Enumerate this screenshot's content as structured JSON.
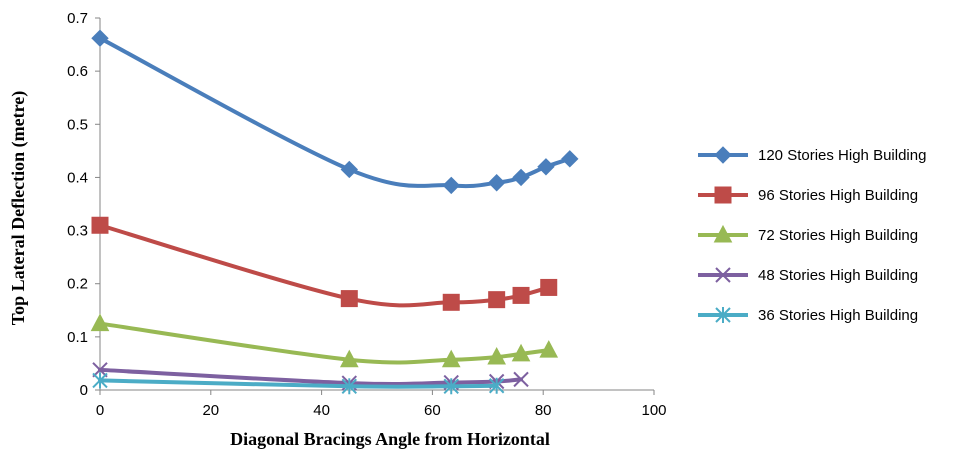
{
  "chart_data": {
    "type": "line",
    "title": "",
    "xlabel": "Diagonal Bracings Angle from Horizontal",
    "ylabel": "Top Lateral Deflection (metre)",
    "xlim": [
      0,
      100
    ],
    "ylim": [
      0,
      0.7
    ],
    "xticks": [
      "0",
      "20",
      "40",
      "60",
      "80",
      "100"
    ],
    "yticks": [
      "0",
      "0.1",
      "0.2",
      "0.3",
      "0.4",
      "0.5",
      "0.6",
      "0.7"
    ],
    "grid": false,
    "legend_position": "right",
    "series": [
      {
        "name": "120 Stories High Building",
        "color": "#4a7ebb",
        "marker": "diamond",
        "x": [
          0,
          45,
          63.4,
          71.6,
          76,
          80.5,
          84.8
        ],
        "y": [
          0.662,
          0.415,
          0.385,
          0.39,
          0.4,
          0.42,
          0.435
        ]
      },
      {
        "name": "96 Stories High Building",
        "color": "#be4b48",
        "marker": "square",
        "x": [
          0,
          45,
          63.4,
          71.6,
          76,
          81
        ],
        "y": [
          0.31,
          0.172,
          0.165,
          0.17,
          0.178,
          0.193
        ]
      },
      {
        "name": "72 Stories High Building",
        "color": "#98b954",
        "marker": "triangle",
        "x": [
          0,
          45,
          63.4,
          71.6,
          76,
          81
        ],
        "y": [
          0.125,
          0.057,
          0.057,
          0.062,
          0.068,
          0.075
        ]
      },
      {
        "name": "48 Stories High Building",
        "color": "#7d60a0",
        "marker": "x",
        "x": [
          0,
          45,
          63.4,
          71.6,
          76
        ],
        "y": [
          0.038,
          0.013,
          0.014,
          0.016,
          0.02
        ]
      },
      {
        "name": "36 Stories High Building",
        "color": "#4bacc6",
        "marker": "star",
        "x": [
          0,
          45,
          63.4,
          71.6
        ],
        "y": [
          0.018,
          0.007,
          0.007,
          0.008
        ]
      }
    ]
  }
}
